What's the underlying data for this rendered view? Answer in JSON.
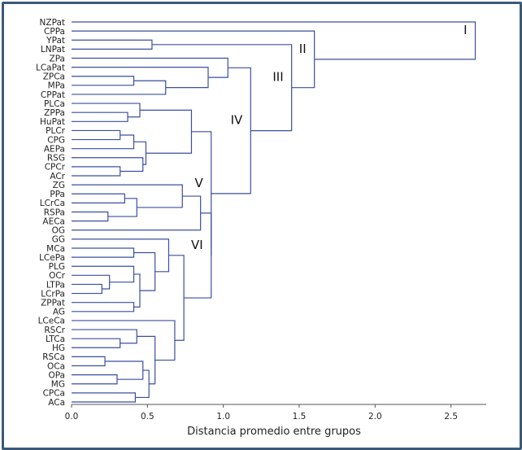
{
  "chart_data": {
    "type": "dendrogram",
    "xlabel": "Distancia promedio entre grupos",
    "xlim": [
      0,
      2.7
    ],
    "xticks": [
      0.0,
      0.5,
      1.0,
      1.5,
      2.0,
      2.5
    ],
    "xtick_labels": [
      "0.0",
      "0.5",
      "1.0",
      "1.5",
      "2.0",
      "2.5"
    ],
    "leaves": [
      "NZPat",
      "CPPa",
      "YPat",
      "LNPat",
      "ZPa",
      "LCaPat",
      "ZPCa",
      "MPa",
      "CPPat",
      "PLCa",
      "ZPPa",
      "HuPat",
      "PLCr",
      "CPG",
      "AEPa",
      "RSG",
      "CPCr",
      "ACr",
      "ZG",
      "PPa",
      "LCrCa",
      "RSPa",
      "AECa",
      "OG",
      "GG",
      "MCa",
      "LCePa",
      "PLG",
      "OCr",
      "LTPa",
      "LCrPa",
      "ZPPat",
      "AG",
      "LCeCa",
      "RSCr",
      "LTCa",
      "HG",
      "RSCa",
      "OCa",
      "OPa",
      "MG",
      "CPCa",
      "ACa"
    ],
    "merges": [
      {
        "id": "n1",
        "children": [
          "LCrPa",
          "LTPa"
        ],
        "height": 0.2
      },
      {
        "id": "n2",
        "children": [
          "RSCa",
          "OCa"
        ],
        "height": 0.22
      },
      {
        "id": "n3",
        "children": [
          "n1",
          "OCr"
        ],
        "height": 0.25
      },
      {
        "id": "n4",
        "children": [
          "RSPa",
          "AECa"
        ],
        "height": 0.24
      },
      {
        "id": "n5",
        "children": [
          "OPa",
          "MG"
        ],
        "height": 0.3
      },
      {
        "id": "n6",
        "children": [
          "PLCr",
          "CPG"
        ],
        "height": 0.32
      },
      {
        "id": "n7",
        "children": [
          "CPCr",
          "ACr"
        ],
        "height": 0.32
      },
      {
        "id": "n8",
        "children": [
          "LTCa",
          "HG"
        ],
        "height": 0.32
      },
      {
        "id": "n9",
        "children": [
          "PPa",
          "LCrCa"
        ],
        "height": 0.35
      },
      {
        "id": "n10",
        "children": [
          "ZPPa",
          "HuPat"
        ],
        "height": 0.37
      },
      {
        "id": "n11",
        "children": [
          "ZPCa",
          "MPa"
        ],
        "height": 0.41
      },
      {
        "id": "n12",
        "children": [
          "n6",
          "AEPa"
        ],
        "height": 0.41
      },
      {
        "id": "n13",
        "children": [
          "MCa",
          "LCePa"
        ],
        "height": 0.41
      },
      {
        "id": "n14",
        "children": [
          "PLG",
          "n3"
        ],
        "height": 0.41
      },
      {
        "id": "n15",
        "children": [
          "ZPPat",
          "AG"
        ],
        "height": 0.41
      },
      {
        "id": "n16",
        "children": [
          "CPCa",
          "ACa"
        ],
        "height": 0.42
      },
      {
        "id": "n17",
        "children": [
          "n9",
          "n4"
        ],
        "height": 0.43
      },
      {
        "id": "n18",
        "children": [
          "RSCr",
          "n8"
        ],
        "height": 0.43
      },
      {
        "id": "n19",
        "children": [
          "n14",
          "n15"
        ],
        "height": 0.45
      },
      {
        "id": "n20",
        "children": [
          "PLCa",
          "n10"
        ],
        "height": 0.45
      },
      {
        "id": "n21",
        "children": [
          "n2",
          "n5"
        ],
        "height": 0.47
      },
      {
        "id": "n22",
        "children": [
          "RSG",
          "n7"
        ],
        "height": 0.47
      },
      {
        "id": "n23",
        "children": [
          "n12",
          "n22"
        ],
        "height": 0.49
      },
      {
        "id": "n24",
        "children": [
          "YPat",
          "LNPat"
        ],
        "height": 0.53
      },
      {
        "id": "n25",
        "children": [
          "n21",
          "n16"
        ],
        "height": 0.51
      },
      {
        "id": "n26",
        "children": [
          "n13",
          "n19"
        ],
        "height": 0.55
      },
      {
        "id": "n27",
        "children": [
          "n11",
          "CPPat"
        ],
        "height": 0.62
      },
      {
        "id": "n28",
        "children": [
          "n18",
          "n25"
        ],
        "height": 0.55
      },
      {
        "id": "n29",
        "children": [
          "GG",
          "n26"
        ],
        "height": 0.64
      },
      {
        "id": "n30",
        "children": [
          "LCeCa",
          "n28"
        ],
        "height": 0.68
      },
      {
        "id": "n31",
        "children": [
          "ZG",
          "n17"
        ],
        "height": 0.73
      },
      {
        "id": "n32",
        "children": [
          "n29",
          "n30"
        ],
        "height": 0.74
      },
      {
        "id": "n33",
        "children": [
          "n20",
          "n23"
        ],
        "height": 0.79
      },
      {
        "id": "n34",
        "children": [
          "LCaPat",
          "n27"
        ],
        "height": 0.9
      },
      {
        "id": "n35",
        "children": [
          "n31",
          "OG"
        ],
        "height": 0.85
      },
      {
        "id": "n36",
        "children": [
          "n35",
          "n32"
        ],
        "height": 0.92
      },
      {
        "id": "n37",
        "children": [
          "n33",
          "n36"
        ],
        "height": 0.92
      },
      {
        "id": "n38",
        "children": [
          "ZPa",
          "n34"
        ],
        "height": 1.03
      },
      {
        "id": "n39",
        "children": [
          "n38",
          "n37"
        ],
        "height": 1.18
      },
      {
        "id": "n40",
        "children": [
          "n24",
          "n39"
        ],
        "height": 1.45
      },
      {
        "id": "n41",
        "children": [
          "CPPa",
          "n40"
        ],
        "height": 1.6
      },
      {
        "id": "n42",
        "children": [
          "NZPat",
          "n41"
        ],
        "height": 2.66
      }
    ],
    "cluster_labels": [
      {
        "text": "I",
        "node": "n42"
      },
      {
        "text": "II",
        "node": "n41"
      },
      {
        "text": "III",
        "node": "n40"
      },
      {
        "text": "IV",
        "node": "n39"
      },
      {
        "text": "V",
        "node": "n37"
      },
      {
        "text": "VI",
        "node": "n36"
      }
    ],
    "colors": {
      "branch": "#3a4fa0",
      "frame": "#3c5a78"
    }
  }
}
